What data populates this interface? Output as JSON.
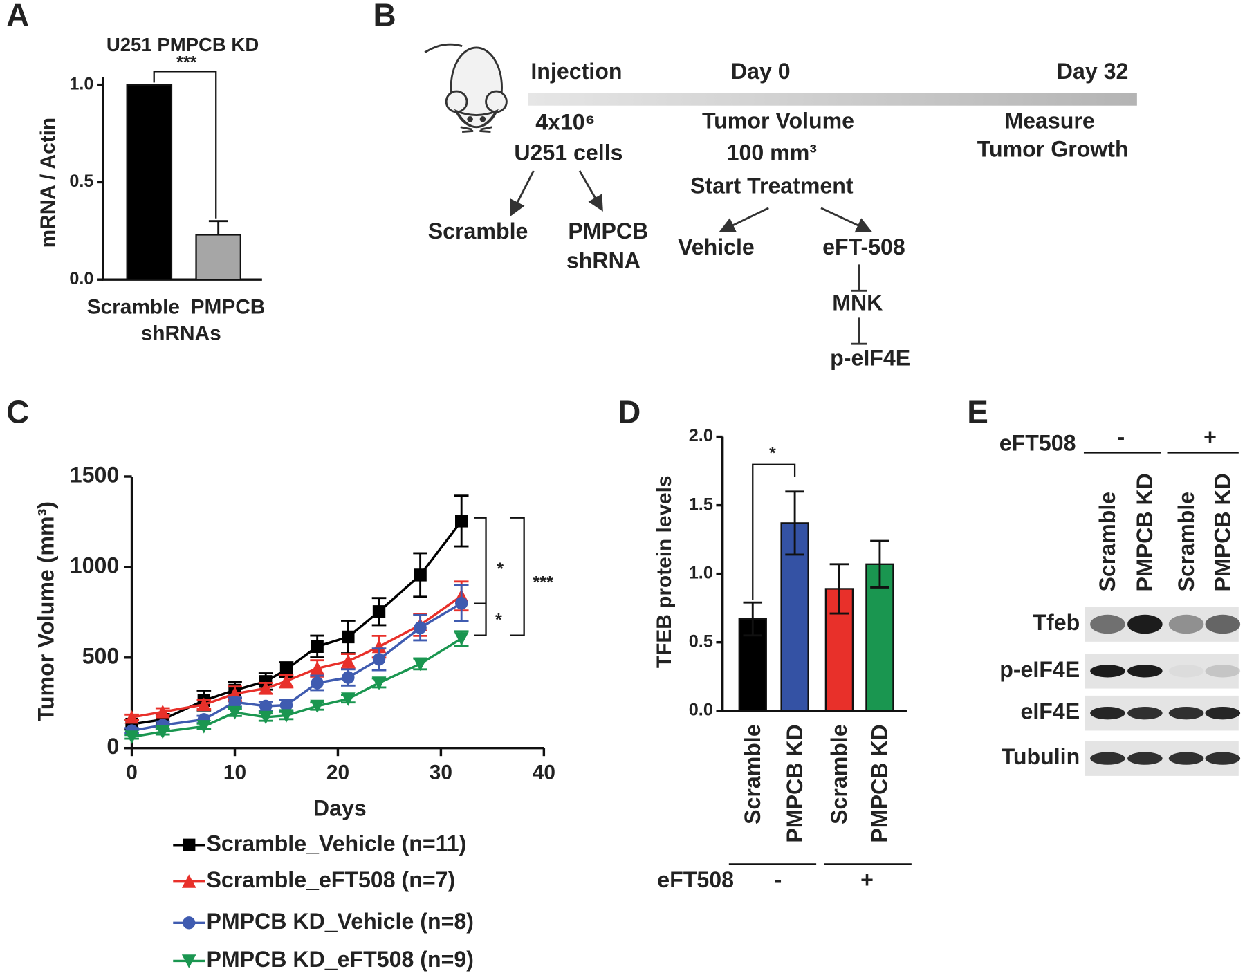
{
  "panels": [
    "A",
    "B",
    "C",
    "D",
    "E"
  ],
  "chart_data": [
    {
      "type": "bar",
      "title": "U251 PMPCB KD",
      "categories": [
        "Scramble",
        "PMPCB"
      ],
      "xlabel": "shRNAs",
      "ylabel": "mRNA / Actin",
      "values": [
        1.0,
        0.23
      ],
      "errors": [
        0,
        0.07
      ],
      "colors": [
        "#000000",
        "#a6a6a6"
      ],
      "ylim": [
        0,
        1.04
      ],
      "yticks": [
        {
          "value": 0,
          "label": "0.0"
        },
        {
          "value": 0.5,
          "label": "0.5"
        },
        {
          "value": 1,
          "label": "1.0"
        }
      ],
      "annotations": [
        "***"
      ]
    },
    {
      "type": "line",
      "xlabel": "Days",
      "ylabel": "Tumor Volume (mm³)",
      "x": [
        0,
        3,
        7,
        10,
        13,
        15,
        18,
        21,
        24,
        28,
        32
      ],
      "xlim": [
        0,
        40
      ],
      "ylim": [
        0,
        1500
      ],
      "xticks": [
        0,
        10,
        20,
        30,
        40
      ],
      "yticks": [
        0,
        500,
        1000,
        1500
      ],
      "series": [
        {
          "name": "Scramble_Vehicle (n=11)",
          "color": "#000000",
          "marker": "square",
          "values": [
            132,
            158,
            263,
            320,
            368,
            434,
            561,
            614,
            754,
            956,
            1254
          ],
          "errors": [
            25,
            30,
            55,
            45,
            45,
            40,
            60,
            90,
            75,
            120,
            140
          ]
        },
        {
          "name": "Scramble_eFT508 (n=7)",
          "color": "#e8302a",
          "marker": "triangle-up",
          "values": [
            170,
            200,
            240,
            300,
            330,
            370,
            440,
            480,
            560,
            680,
            840
          ],
          "errors": [
            15,
            20,
            25,
            40,
            30,
            35,
            45,
            40,
            60,
            60,
            80
          ]
        },
        {
          "name": "PMPCB KD_Vehicle (n=8)",
          "color": "#3f5bb0",
          "marker": "circle",
          "values": [
            96,
            127,
            158,
            254,
            232,
            237,
            360,
            390,
            490,
            665,
            800
          ],
          "errors": [
            15,
            20,
            20,
            25,
            25,
            30,
            40,
            45,
            60,
            70,
            100
          ]
        },
        {
          "name": "PMPCB KD_eFT508 (n=9)",
          "color": "#1a9650",
          "marker": "triangle-down",
          "values": [
            62,
            90,
            120,
            197,
            171,
            180,
            232,
            272,
            360,
            465,
            605
          ],
          "errors": [
            10,
            15,
            15,
            20,
            20,
            20,
            20,
            20,
            25,
            30,
            40
          ]
        }
      ],
      "annotations": [
        "*",
        "*",
        "***"
      ]
    },
    {
      "type": "bar",
      "ylabel": "TFEB protein levels",
      "categories": [
        "Scramble",
        "PMPCB KD",
        "Scramble",
        "PMPCB KD"
      ],
      "values": [
        0.67,
        1.37,
        0.89,
        1.07
      ],
      "errors": [
        0.12,
        0.23,
        0.18,
        0.17
      ],
      "colors": [
        "#000000",
        "#3452a4",
        "#e8302a",
        "#1a9650"
      ],
      "ylim": [
        0,
        2
      ],
      "yticks": [
        {
          "value": 0,
          "label": "0.0"
        },
        {
          "value": 0.5,
          "label": "0.5"
        },
        {
          "value": 1,
          "label": "1.0"
        },
        {
          "value": 1.5,
          "label": "1.5"
        },
        {
          "value": 2,
          "label": "2.0"
        }
      ],
      "annotations": [
        "*"
      ],
      "group_label": "eFT508",
      "groups": [
        "-",
        "+"
      ]
    }
  ],
  "diagram": {
    "timeline": [
      "Injection",
      "Day 0",
      "Day 32"
    ],
    "cells": [
      "4x10⁶",
      "U251 cells"
    ],
    "tumor": [
      "Tumor Volume",
      "100 mm³",
      "Start Treatment"
    ],
    "measure": [
      "Measure",
      "Tumor Growth"
    ],
    "scramble": "Scramble",
    "shrna": [
      "PMPCB",
      "shRNA"
    ],
    "vehicle": "Vehicle",
    "drug": "eFT-508",
    "mnk": "MNK",
    "target": "p-eIF4E"
  },
  "blot": {
    "condition": "eFT508",
    "groups": [
      "-",
      "+"
    ],
    "lanes": [
      "Scramble",
      "PMPCB KD",
      "Scramble",
      "PMPCB KD"
    ],
    "rows": [
      "Tfeb",
      "p-eIF4E",
      "eIF4E",
      "Tubulin"
    ]
  }
}
